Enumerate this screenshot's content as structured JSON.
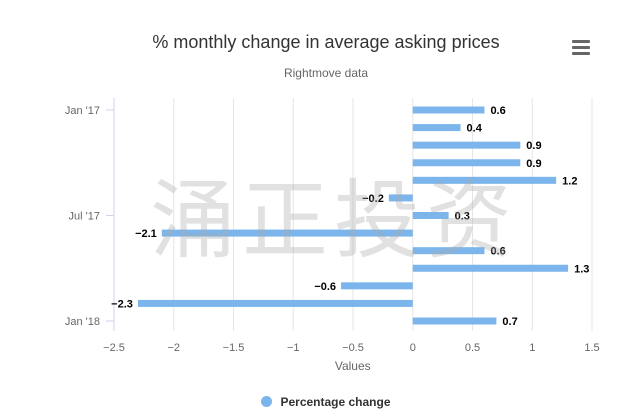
{
  "chart_data": {
    "type": "bar",
    "orientation": "horizontal",
    "title": "% monthly change in average asking prices",
    "subtitle": "Rightmove data",
    "xlabel": "Values",
    "xlim": [
      -2.5,
      1.5
    ],
    "x_ticks": [
      -2.5,
      -2,
      -1.5,
      -1,
      -0.5,
      0,
      0.5,
      1,
      1.5
    ],
    "x_tick_labels": [
      "−2.5",
      "−2",
      "−1.5",
      "−1",
      "−0.5",
      "0",
      "0.5",
      "1",
      "1.5"
    ],
    "y_tick_labels": [
      {
        "index": 0,
        "label": "Jan '17"
      },
      {
        "index": 6,
        "label": "Jul '17"
      },
      {
        "index": 12,
        "label": "Jan '18"
      }
    ],
    "values": [
      0.6,
      0.4,
      0.9,
      0.9,
      1.2,
      -0.2,
      0.3,
      -2.1,
      0.6,
      1.3,
      -0.6,
      -2.3,
      0.7
    ],
    "data_labels": [
      "0.6",
      "0.4",
      "0.9",
      "0.9",
      "1.2",
      "−0.2",
      "0.3",
      "−2.1",
      "0.6",
      "1.3",
      "−0.6",
      "−2.3",
      "0.7"
    ],
    "series": [
      {
        "name": "Percentage change",
        "color": "#7cb5ec"
      }
    ],
    "grid": true,
    "legend_position": "bottom-center"
  },
  "watermark": "涌正投资",
  "menu": {
    "icon": "hamburger-menu-icon"
  }
}
